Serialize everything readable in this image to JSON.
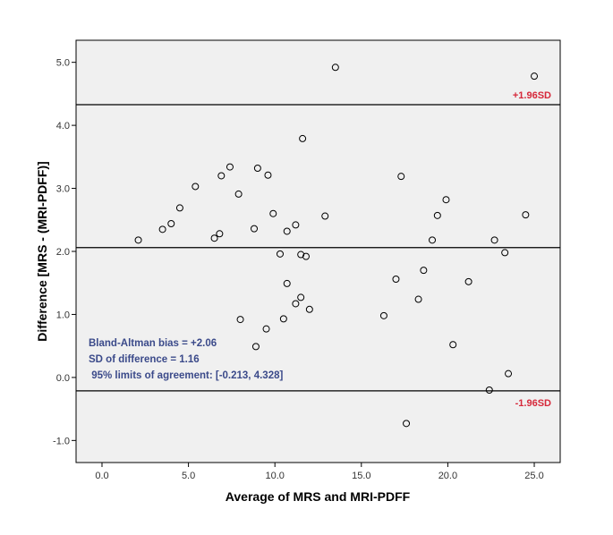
{
  "chart_data": {
    "type": "scatter",
    "title": "",
    "xlabel": "Average of MRS and MRI-PDFF",
    "ylabel": "Difference [MRS - (MRI-PDFF)]",
    "xlim": [
      -1.5,
      26.5
    ],
    "ylim": [
      -1.35,
      5.35
    ],
    "x_ticks": [
      0,
      5,
      10,
      15,
      20,
      25
    ],
    "x_tick_labels": [
      "0.0",
      "5.0",
      "10.0",
      "15.0",
      "20.0",
      "25.0"
    ],
    "y_ticks": [
      -1,
      0,
      1,
      2,
      3,
      4,
      5
    ],
    "y_tick_labels": [
      "-1.0",
      "0.0",
      "1.0",
      "2.0",
      "3.0",
      "4.0",
      "5.0"
    ],
    "points": [
      {
        "x": 2.1,
        "y": 2.18
      },
      {
        "x": 3.5,
        "y": 2.35
      },
      {
        "x": 4.0,
        "y": 2.44
      },
      {
        "x": 4.5,
        "y": 2.69
      },
      {
        "x": 5.4,
        "y": 3.03
      },
      {
        "x": 6.5,
        "y": 2.21
      },
      {
        "x": 6.8,
        "y": 2.28
      },
      {
        "x": 6.9,
        "y": 3.2
      },
      {
        "x": 7.4,
        "y": 3.34
      },
      {
        "x": 7.9,
        "y": 2.91
      },
      {
        "x": 8.0,
        "y": 0.92
      },
      {
        "x": 8.8,
        "y": 2.36
      },
      {
        "x": 8.9,
        "y": 0.49
      },
      {
        "x": 9.0,
        "y": 3.32
      },
      {
        "x": 9.5,
        "y": 0.77
      },
      {
        "x": 9.6,
        "y": 3.21
      },
      {
        "x": 9.9,
        "y": 2.6
      },
      {
        "x": 10.3,
        "y": 1.96
      },
      {
        "x": 10.5,
        "y": 0.93
      },
      {
        "x": 10.7,
        "y": 1.49
      },
      {
        "x": 10.7,
        "y": 2.32
      },
      {
        "x": 11.2,
        "y": 1.17
      },
      {
        "x": 11.2,
        "y": 2.42
      },
      {
        "x": 11.5,
        "y": 1.95
      },
      {
        "x": 11.5,
        "y": 1.27
      },
      {
        "x": 11.6,
        "y": 3.79
      },
      {
        "x": 11.8,
        "y": 1.92
      },
      {
        "x": 12.0,
        "y": 1.08
      },
      {
        "x": 12.9,
        "y": 2.56
      },
      {
        "x": 13.5,
        "y": 4.92
      },
      {
        "x": 16.3,
        "y": 0.98
      },
      {
        "x": 17.0,
        "y": 1.56
      },
      {
        "x": 17.3,
        "y": 3.19
      },
      {
        "x": 17.6,
        "y": -0.73
      },
      {
        "x": 18.3,
        "y": 1.24
      },
      {
        "x": 18.6,
        "y": 1.7
      },
      {
        "x": 19.1,
        "y": 2.18
      },
      {
        "x": 19.4,
        "y": 2.57
      },
      {
        "x": 19.9,
        "y": 2.82
      },
      {
        "x": 20.3,
        "y": 0.52
      },
      {
        "x": 21.2,
        "y": 1.52
      },
      {
        "x": 22.4,
        "y": -0.2
      },
      {
        "x": 22.7,
        "y": 2.18
      },
      {
        "x": 23.3,
        "y": 1.98
      },
      {
        "x": 23.5,
        "y": 0.06
      },
      {
        "x": 24.5,
        "y": 2.58
      },
      {
        "x": 25.0,
        "y": 4.78
      }
    ],
    "reference_lines": [
      {
        "name": "upper-limit",
        "y": 4.328,
        "label": "+1.96SD"
      },
      {
        "name": "bias",
        "y": 2.06,
        "label": ""
      },
      {
        "name": "lower-limit",
        "y": -0.213,
        "label": "-1.96SD"
      }
    ],
    "annotations": [
      "Bland-Altman bias = +2.06",
      "SD of difference = 1.16",
      " 95% limits of agreement: [-0.213, 4.328]"
    ],
    "colors": {
      "plot_background": "#f0f0f0",
      "annotation_text": "#3b4a8a",
      "sd_label": "#d6283a",
      "line": "#000000"
    }
  }
}
